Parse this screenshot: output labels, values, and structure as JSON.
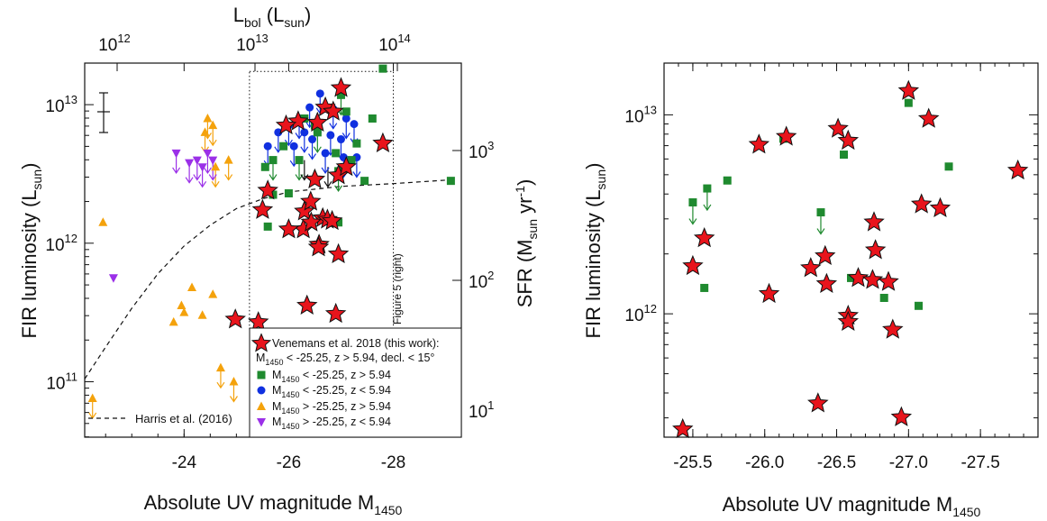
{
  "colors": {
    "this_work": "#e8141c",
    "green": "#1f8a2f",
    "blue": "#1030e0",
    "orange": "#f4a20c",
    "purple": "#9b30e8"
  },
  "chart_data": [
    {
      "type": "scatter",
      "xlabel": "Absolute UV magnitude M",
      "xlabel_sub": "1450",
      "ylabel": "FIR luminosity (L",
      "ylabel_sub": "sun",
      "top_axis_label": "L",
      "top_axis_label_sub": "bol",
      "top_axis_unit": " (L",
      "top_axis_unit_sub": "sun",
      "right_axis_label": "SFR (M",
      "right_axis_label_sub": "sun",
      "right_axis_label_tail": " yr",
      "right_axis_label_sup": "-1",
      "x_ticks": [
        "-24",
        "-26",
        "-28"
      ],
      "y_ticks": [
        "10",
        "10",
        "10"
      ],
      "y_ticks_sup": [
        "11",
        "12",
        "13"
      ],
      "top_ticks": [
        "10",
        "10",
        "10"
      ],
      "top_ticks_sup": [
        "12",
        "13",
        "14"
      ],
      "right_ticks": [
        "10",
        "10",
        "10"
      ],
      "right_ticks_sup": [
        "1",
        "2",
        "3"
      ],
      "xlim": [
        -22.1,
        -29.3
      ],
      "ylim_log10": [
        10.6,
        13.3
      ],
      "y_scale": "log",
      "box_label": "Figure 5 (right)",
      "curve_label": "Harris et al. (2016)",
      "legend": [
        {
          "label": "Venemans et al. 2018 (this work):",
          "line2": "M",
          "line2_sub": "1450",
          "line2_tail": " < -25.25, z > 5.94, decl. < 15°"
        },
        {
          "label": "M",
          "sub": "1450",
          "tail": " < -25.25, z > 5.94"
        },
        {
          "label": "M",
          "sub": "1450",
          "tail": " < -25.25, z < 5.94"
        },
        {
          "label": "M",
          "sub": "1450",
          "tail": " > -25.25, z > 5.94"
        },
        {
          "label": "M",
          "sub": "1450",
          "tail": " > -25.25, z < 5.94"
        }
      ],
      "legend_position": "bottom-right",
      "series": [
        {
          "name": "Venemans et al. 2018 (this work)",
          "marker": "star",
          "points": [
            [
              -27.0,
              13.12
            ],
            [
              -26.95,
              12.49
            ],
            [
              -27.1,
              12.55
            ],
            [
              -26.3,
              12.23
            ],
            [
              -26.5,
              12.46
            ],
            [
              -26.7,
              12.98
            ],
            [
              -26.18,
              12.88
            ],
            [
              -25.95,
              12.85
            ],
            [
              -26.55,
              12.87
            ],
            [
              -26.85,
              12.95
            ],
            [
              -27.8,
              12.72
            ],
            [
              -25.6,
              12.38
            ],
            [
              -25.5,
              12.24
            ],
            [
              -26.42,
              12.3
            ],
            [
              -26.28,
              12.1
            ],
            [
              -26.65,
              12.18
            ],
            [
              -26.74,
              12.17
            ],
            [
              -26.83,
              12.16
            ],
            [
              -26.0,
              12.1
            ],
            [
              -26.58,
              11.99
            ],
            [
              -26.57,
              11.97
            ],
            [
              -26.95,
              11.92
            ],
            [
              -26.35,
              11.55
            ],
            [
              -26.9,
              11.49
            ],
            [
              -24.98,
              11.45
            ],
            [
              -25.42,
              11.43
            ],
            [
              -26.43,
              12.15
            ]
          ]
        },
        {
          "name": "M1450 < -25.25, z > 5.94",
          "marker": "square",
          "points": [
            [
              -27.8,
              13.26
            ],
            [
              -27.0,
              13.07
            ],
            [
              -27.6,
              12.9
            ],
            [
              -27.1,
              12.95
            ],
            [
              -26.3,
              12.9
            ],
            [
              -26.5,
              12.85
            ],
            [
              -26.9,
              12.65
            ],
            [
              -27.2,
              12.6
            ],
            [
              -29.1,
              12.45
            ],
            [
              -27.3,
              12.72
            ],
            [
              -25.9,
              12.7
            ],
            [
              -25.7,
              12.6
            ],
            [
              -25.55,
              12.55
            ],
            [
              -26.55,
              12.8
            ],
            [
              -26.2,
              12.6
            ],
            [
              -26.95,
              12.52
            ],
            [
              -27.45,
              12.45
            ],
            [
              -25.7,
              12.35
            ],
            [
              -26.0,
              12.36
            ],
            [
              -26.95,
              12.15
            ],
            [
              -25.6,
              12.12
            ]
          ]
        },
        {
          "name": "M1450 < -25.25, z < 5.94",
          "marker": "circle",
          "points": [
            [
              -26.2,
              12.9
            ],
            [
              -26.4,
              12.98
            ],
            [
              -26.6,
              13.08
            ],
            [
              -26.85,
              12.97
            ],
            [
              -27.1,
              12.9
            ],
            [
              -27.25,
              12.86
            ],
            [
              -26.0,
              12.85
            ],
            [
              -25.8,
              12.8
            ],
            [
              -26.3,
              12.8
            ],
            [
              -26.55,
              12.8
            ],
            [
              -26.8,
              12.78
            ],
            [
              -27.0,
              12.75
            ],
            [
              -26.45,
              12.75
            ],
            [
              -25.6,
              12.7
            ],
            [
              -26.1,
              12.7
            ],
            [
              -26.7,
              12.65
            ],
            [
              -27.05,
              12.62
            ],
            [
              -27.3,
              12.62
            ]
          ]
        },
        {
          "name": "M1450 > -25.25, z > 5.94",
          "marker": "triangle-up",
          "points": [
            [
              -24.45,
              12.9
            ],
            [
              -24.55,
              12.85
            ],
            [
              -24.4,
              12.8
            ],
            [
              -24.85,
              12.6
            ],
            [
              -24.6,
              12.55
            ],
            [
              -22.45,
              12.15
            ],
            [
              -24.15,
              11.68
            ],
            [
              -24.55,
              11.63
            ],
            [
              -23.95,
              11.55
            ],
            [
              -24.0,
              11.5
            ],
            [
              -24.35,
              11.48
            ],
            [
              -23.8,
              11.43
            ],
            [
              -24.7,
              11.1
            ],
            [
              -24.95,
              11.0
            ],
            [
              -22.25,
              10.88
            ]
          ]
        },
        {
          "name": "M1450 > -25.25, z < 5.94",
          "marker": "triangle-down",
          "points": [
            [
              -23.85,
              12.65
            ],
            [
              -24.45,
              12.65
            ],
            [
              -24.55,
              12.6
            ],
            [
              -24.35,
              12.55
            ],
            [
              -24.25,
              12.6
            ],
            [
              -24.1,
              12.58
            ],
            [
              -22.65,
              11.75
            ]
          ]
        }
      ],
      "upper_limits": [
        [
          -27.0,
          13.07
        ],
        [
          -26.55,
          12.8
        ],
        [
          -26.2,
          12.6
        ],
        [
          -25.7,
          12.6
        ],
        [
          -26.3,
          12.6
        ],
        [
          -26.75,
          12.55
        ],
        [
          -26.95,
          12.52
        ],
        [
          -26.2,
          12.9
        ],
        [
          -26.4,
          12.98
        ],
        [
          -26.6,
          13.08
        ],
        [
          -26.85,
          12.97
        ],
        [
          -27.1,
          12.9
        ],
        [
          -27.25,
          12.86
        ],
        [
          -26.0,
          12.85
        ],
        [
          -25.8,
          12.8
        ],
        [
          -26.3,
          12.8
        ],
        [
          -26.8,
          12.78
        ],
        [
          -27.0,
          12.75
        ],
        [
          -26.45,
          12.75
        ],
        [
          -25.6,
          12.7
        ],
        [
          -26.1,
          12.7
        ],
        [
          -26.7,
          12.65
        ],
        [
          -27.05,
          12.62
        ],
        [
          -27.3,
          12.62
        ],
        [
          -24.45,
          12.9
        ],
        [
          -24.55,
          12.85
        ],
        [
          -24.4,
          12.8
        ],
        [
          -24.85,
          12.6
        ],
        [
          -24.6,
          12.55
        ],
        [
          -24.7,
          11.1
        ],
        [
          -24.95,
          11.0
        ],
        [
          -22.25,
          10.88
        ],
        [
          -23.85,
          12.65
        ],
        [
          -24.45,
          12.65
        ],
        [
          -24.55,
          12.6
        ],
        [
          -24.35,
          12.55
        ],
        [
          -24.25,
          12.6
        ],
        [
          -24.1,
          12.58
        ]
      ],
      "curve": [
        [
          -22.1,
          11.02
        ],
        [
          -22.5,
          11.25
        ],
        [
          -23.0,
          11.53
        ],
        [
          -23.5,
          11.78
        ],
        [
          -24.0,
          11.98
        ],
        [
          -24.5,
          12.13
        ],
        [
          -25.0,
          12.25
        ],
        [
          -25.5,
          12.32
        ],
        [
          -26.0,
          12.37
        ],
        [
          -26.5,
          12.39
        ],
        [
          -27.0,
          12.41
        ],
        [
          -28.0,
          12.43
        ],
        [
          -29.2,
          12.46
        ]
      ],
      "box": {
        "xrange": [
          -25.25,
          -28.0
        ],
        "yrange_log10": [
          11.37,
          13.24
        ]
      }
    },
    {
      "type": "scatter",
      "xlabel": "Absolute UV magnitude M",
      "xlabel_sub": "1450",
      "ylabel": "FIR luminosity (L",
      "ylabel_sub": "sun",
      "x_ticks": [
        "-25.5",
        "-26.0",
        "-26.5",
        "-27.0",
        "-27.5"
      ],
      "y_ticks": [
        "10",
        "10"
      ],
      "y_ticks_sup": [
        "12",
        "13"
      ],
      "xlim": [
        -25.3,
        -27.9
      ],
      "ylim_log10": [
        11.38,
        13.26
      ],
      "y_scale": "log",
      "series": [
        {
          "name": "Venemans et al. 2018 (this work)",
          "marker": "star",
          "points": [
            [
              -25.43,
              11.42
            ],
            [
              -25.5,
              12.24
            ],
            [
              -25.58,
              12.38
            ],
            [
              -25.96,
              12.85
            ],
            [
              -26.03,
              12.1
            ],
            [
              -26.15,
              12.89
            ],
            [
              -26.32,
              12.23
            ],
            [
              -26.37,
              11.55
            ],
            [
              -26.42,
              12.29
            ],
            [
              -26.43,
              12.15
            ],
            [
              -26.51,
              12.93
            ],
            [
              -26.58,
              12.87
            ],
            [
              -26.58,
              11.99
            ],
            [
              -26.58,
              11.96
            ],
            [
              -26.65,
              12.18
            ],
            [
              -26.75,
              12.17
            ],
            [
              -26.76,
              12.46
            ],
            [
              -26.77,
              12.32
            ],
            [
              -26.86,
              12.16
            ],
            [
              -26.89,
              11.92
            ],
            [
              -26.95,
              11.48
            ],
            [
              -27.0,
              13.12
            ],
            [
              -27.09,
              12.55
            ],
            [
              -27.14,
              12.98
            ],
            [
              -27.22,
              12.53
            ],
            [
              -27.76,
              12.72
            ]
          ]
        },
        {
          "name": "M1450 < -25.25, z > 5.94",
          "marker": "square",
          "points": [
            [
              -25.5,
              12.56
            ],
            [
              -25.58,
              12.13
            ],
            [
              -25.6,
              12.63
            ],
            [
              -25.74,
              12.67
            ],
            [
              -26.13,
              12.88
            ],
            [
              -26.39,
              12.51
            ],
            [
              -26.55,
              12.8
            ],
            [
              -26.6,
              12.18
            ],
            [
              -26.83,
              12.08
            ],
            [
              -27.0,
              13.06
            ],
            [
              -27.07,
              12.04
            ],
            [
              -27.28,
              12.74
            ]
          ]
        }
      ],
      "upper_limits": [
        [
          -25.5,
          12.56
        ],
        [
          -25.6,
          12.63
        ],
        [
          -26.39,
          12.51
        ]
      ]
    }
  ]
}
